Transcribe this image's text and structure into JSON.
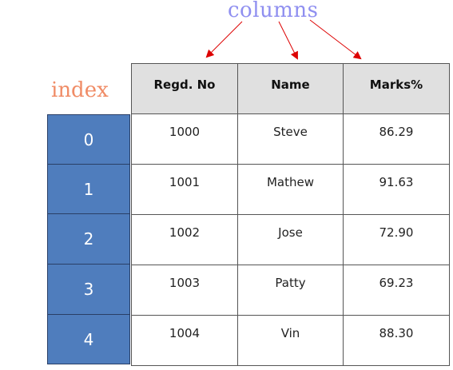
{
  "labels": {
    "columns": "columns",
    "index": "index"
  },
  "colors": {
    "columns_label": "#8f8ff0",
    "index_label": "#f08c66",
    "index_cell": "#4f7dbd",
    "header_bg": "#e0e0e0",
    "arrow": "#dd0000"
  },
  "table": {
    "headers": [
      "Regd. No",
      "Name",
      "Marks%"
    ],
    "index": [
      "0",
      "1",
      "2",
      "3",
      "4"
    ],
    "rows": [
      [
        "1000",
        "Steve",
        "86.29"
      ],
      [
        "1001",
        "Mathew",
        "91.63"
      ],
      [
        "1002",
        "Jose",
        "72.90"
      ],
      [
        "1003",
        "Patty",
        "69.23"
      ],
      [
        "1004",
        "Vin",
        "88.30"
      ]
    ]
  }
}
